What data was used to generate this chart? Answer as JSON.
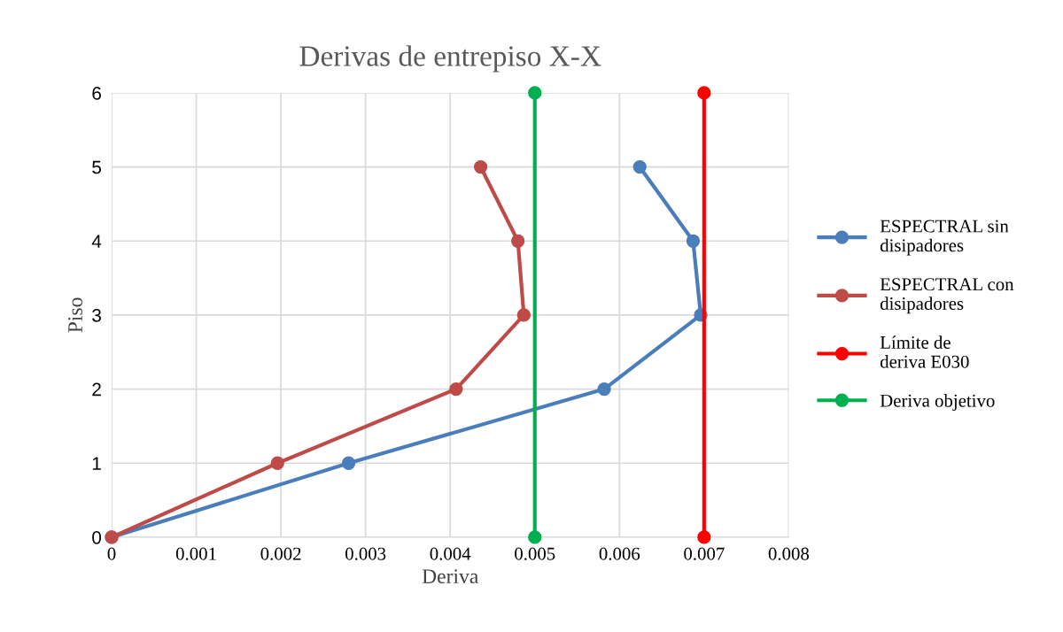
{
  "chart_data": {
    "type": "line",
    "title": "Derivas de entrepiso X-X",
    "xlabel": "Deriva",
    "ylabel": "Piso",
    "xlim": [
      0,
      0.008
    ],
    "xticks": [
      0,
      0.001,
      0.002,
      0.003,
      0.004,
      0.005,
      0.006,
      0.007,
      0.008
    ],
    "ylim": [
      0,
      6
    ],
    "yticks": [
      0,
      1,
      2,
      3,
      4,
      5,
      6
    ],
    "grid": true,
    "legend": "right",
    "marker": "circle",
    "line_style": "solid",
    "series": [
      {
        "name": "ESPECTRAL sin disipadores",
        "color": "#4a7ebb",
        "x": [
          0,
          0.0028,
          0.00582,
          0.00696,
          0.00687,
          0.00624
        ],
        "values": [
          0,
          1,
          2,
          3,
          4,
          5
        ]
      },
      {
        "name": "ESPECTRAL con disipadores",
        "color": "#be4b48",
        "x": [
          0,
          0.00196,
          0.00407,
          0.00487,
          0.0048,
          0.00436
        ],
        "values": [
          0,
          1,
          2,
          3,
          4,
          5
        ]
      },
      {
        "name": "Límite de deriva E030",
        "color": "#ff0000",
        "x": [
          0.007,
          0.007
        ],
        "values": [
          0,
          6
        ]
      },
      {
        "name": "Deriva objetivo",
        "color": "#00b050",
        "x": [
          0.005,
          0.005
        ],
        "values": [
          0,
          6
        ]
      }
    ]
  }
}
